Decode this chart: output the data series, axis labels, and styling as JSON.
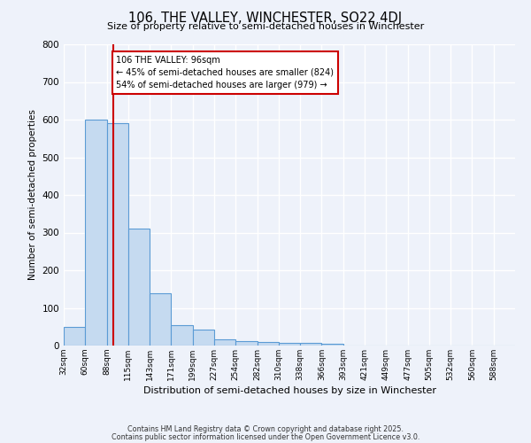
{
  "title": "106, THE VALLEY, WINCHESTER, SO22 4DJ",
  "subtitle": "Size of property relative to semi-detached houses in Winchester",
  "xlabel": "Distribution of semi-detached houses by size in Winchester",
  "ylabel": "Number of semi-detached properties",
  "categories": [
    "32sqm",
    "60sqm",
    "88sqm",
    "115sqm",
    "143sqm",
    "171sqm",
    "199sqm",
    "227sqm",
    "254sqm",
    "282sqm",
    "310sqm",
    "338sqm",
    "366sqm",
    "393sqm",
    "421sqm",
    "449sqm",
    "477sqm",
    "505sqm",
    "532sqm",
    "560sqm",
    "588sqm"
  ],
  "values": [
    50,
    600,
    590,
    310,
    140,
    55,
    42,
    17,
    12,
    10,
    8,
    7,
    5,
    0,
    0,
    0,
    0,
    0,
    0,
    0,
    0
  ],
  "bar_color": "#c5daf0",
  "bar_edge_color": "#5b9bd5",
  "red_line_x": 2,
  "bin_width": 1,
  "annotation_title": "106 THE VALLEY: 96sqm",
  "annotation_line1": "← 45% of semi-detached houses are smaller (824)",
  "annotation_line2": "54% of semi-detached houses are larger (979) →",
  "annotation_box_color": "#ffffff",
  "annotation_box_edge": "#cc0000",
  "vline_color": "#cc0000",
  "ylim": [
    0,
    800
  ],
  "yticks": [
    0,
    100,
    200,
    300,
    400,
    500,
    600,
    700,
    800
  ],
  "background_color": "#eef2fa",
  "grid_color": "#ffffff",
  "footer1": "Contains HM Land Registry data © Crown copyright and database right 2025.",
  "footer2": "Contains public sector information licensed under the Open Government Licence v3.0."
}
